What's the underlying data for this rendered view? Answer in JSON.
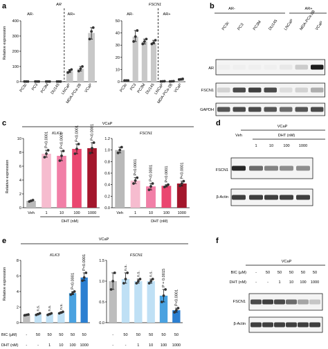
{
  "panels": {
    "a": {
      "label": "a",
      "ylabel": "Relative expression",
      "ar_neg": "AR-",
      "ar_pos": "AR+",
      "charts": [
        {
          "title": "AR",
          "ymax": 400,
          "ticks": [
            0,
            100,
            200,
            300,
            400
          ]
        },
        {
          "title": "FSCN1",
          "ymax": 50,
          "ticks": [
            0,
            10,
            20,
            30,
            40,
            50
          ]
        }
      ]
    },
    "b": {
      "label": "b",
      "ar_neg": "AR-",
      "ar_pos": "AR+",
      "lanes": [
        "PC3c",
        "PC3",
        "PC3M",
        "DU145",
        "LNCaP",
        "MDA-PCa-2B",
        "VCaP"
      ],
      "rows": [
        "AR",
        "FSCN1",
        "GAPDH"
      ]
    },
    "c": {
      "label": "c",
      "header": "VCaP",
      "ylabel": "Relative expression",
      "xlabel": "DHT (nM)",
      "categories": [
        "Veh",
        "1",
        "10",
        "100",
        "1000"
      ],
      "charts": [
        {
          "title": "KLK3",
          "ymax": 10,
          "ticks": [
            0,
            2,
            4,
            6,
            8,
            10
          ]
        },
        {
          "title": "FSCN1",
          "ymax": 1.2,
          "ticks": [
            0.0,
            0.2,
            0.4,
            0.6,
            0.8,
            1.0,
            1.2
          ]
        }
      ]
    },
    "d": {
      "label": "d",
      "header": "VCaP",
      "dht_label": "DHT (nM)",
      "lanes": [
        "Veh",
        "1",
        "10",
        "100",
        "1000"
      ],
      "rows": [
        "FSCN1",
        "β-Actin"
      ]
    },
    "e": {
      "label": "e",
      "header": "VCaP",
      "ylabel": "Relative expression",
      "bic_label": "BIC (µM)",
      "dht_label": "DHT (nM)",
      "bic_values": [
        "-",
        "50",
        "50",
        "50",
        "50",
        "50"
      ],
      "dht_values": [
        "-",
        "-",
        "1",
        "10",
        "100",
        "1000"
      ],
      "charts": [
        {
          "title": "KLK3",
          "ymax": 8,
          "ticks": [
            0,
            2,
            4,
            6,
            8
          ]
        },
        {
          "title": "FSCN1",
          "ymax": 1.5,
          "ticks": [
            0.0,
            0.5,
            1.0,
            1.5
          ]
        }
      ]
    },
    "f": {
      "label": "f",
      "header": "VCaP",
      "bic_label": "BIC (µM)",
      "dht_label": "DHT (nM)",
      "bic_values": [
        "-",
        "50",
        "50",
        "50",
        "50",
        "50"
      ],
      "dht_values": [
        "-",
        "-",
        "1",
        "10",
        "100",
        "1000"
      ],
      "rows": [
        "FSCN1",
        "β-Actin"
      ]
    }
  },
  "chart_data": [
    {
      "type": "bar",
      "panel": "a",
      "title": "AR",
      "ylabel": "Relative expression",
      "categories": [
        "PC3c",
        "PC3",
        "PC3M",
        "DU145",
        "LNCaP",
        "MDA-PCa-2B",
        "VCaP"
      ],
      "values": [
        1,
        1,
        1,
        1,
        70,
        85,
        320
      ],
      "points": [
        [
          1,
          1,
          1
        ],
        [
          1,
          1,
          1
        ],
        [
          1,
          1,
          1
        ],
        [
          1,
          1,
          1
        ],
        [
          60,
          70,
          80
        ],
        [
          70,
          85,
          100
        ],
        [
          280,
          330,
          355
        ]
      ],
      "ylim": [
        0,
        400
      ],
      "colors": [
        "#c8c8c8",
        "#c8c8c8",
        "#c8c8c8",
        "#c8c8c8",
        "#c8c8c8",
        "#c8c8c8",
        "#c8c8c8"
      ]
    },
    {
      "type": "bar",
      "panel": "a",
      "title": "FSCN1",
      "categories": [
        "PC3c",
        "PC3",
        "PC3M",
        "DU145",
        "LNCaP",
        "MDA-PCa-2B",
        "VCaP"
      ],
      "values": [
        1,
        37,
        33,
        32,
        0.3,
        0.3,
        2
      ],
      "points": [
        [
          1,
          1,
          1
        ],
        [
          33,
          37,
          42
        ],
        [
          31,
          33,
          35
        ],
        [
          31,
          32,
          34
        ],
        [
          0.2,
          0.3,
          0.4
        ],
        [
          0.2,
          0.3,
          0.4
        ],
        [
          1.8,
          2,
          2.3
        ]
      ],
      "ylim": [
        0,
        50
      ],
      "colors": [
        "#c8c8c8",
        "#c8c8c8",
        "#c8c8c8",
        "#c8c8c8",
        "#c8c8c8",
        "#c8c8c8",
        "#c8c8c8"
      ]
    },
    {
      "type": "bar",
      "panel": "c",
      "title": "KLK3",
      "ylabel": "Relative expression",
      "xlabel": "DHT (nM)",
      "categories": [
        "Veh",
        "1",
        "10",
        "100",
        "1000"
      ],
      "values": [
        1,
        7.8,
        7.5,
        8.5,
        8.6
      ],
      "points": [
        [
          0.9,
          1,
          1.1
        ],
        [
          7.3,
          7.8,
          8.3
        ],
        [
          6.8,
          7.5,
          8.2
        ],
        [
          7.8,
          8.5,
          9.2
        ],
        [
          7.9,
          8.6,
          9.4
        ]
      ],
      "annotations": [
        "",
        "P<0.0001",
        "P<0.0001",
        "P<0.0001",
        "P<0.0001"
      ],
      "ylim": [
        0,
        10
      ],
      "colors": [
        "#b9b9b9",
        "#f6bccf",
        "#f17fa7",
        "#ea4770",
        "#a3172c"
      ]
    },
    {
      "type": "bar",
      "panel": "c",
      "title": "FSCN1",
      "xlabel": "DHT (nM)",
      "categories": [
        "Veh",
        "1",
        "10",
        "100",
        "1000"
      ],
      "values": [
        1.0,
        0.47,
        0.37,
        0.38,
        0.42
      ],
      "points": [
        [
          0.95,
          1.0,
          1.05
        ],
        [
          0.42,
          0.47,
          0.52
        ],
        [
          0.31,
          0.37,
          0.42
        ],
        [
          0.36,
          0.38,
          0.4
        ],
        [
          0.38,
          0.42,
          0.46
        ]
      ],
      "annotations": [
        "",
        "P<0.0001",
        "P<0.0001",
        "P<0.0001",
        "P<0.0001"
      ],
      "ylim": [
        0,
        1.2
      ],
      "colors": [
        "#b9b9b9",
        "#f6bccf",
        "#f17fa7",
        "#ea4770",
        "#a3172c"
      ]
    },
    {
      "type": "bar",
      "panel": "e",
      "title": "KLK3",
      "ylabel": "Relative expression",
      "categories": [
        "BIC - / DHT -",
        "BIC 50 / DHT -",
        "BIC 50 / DHT 1",
        "BIC 50 / DHT 10",
        "BIC 50 / DHT 100",
        "BIC 50 / DHT 1000"
      ],
      "values": [
        1.0,
        1.1,
        1.1,
        1.3,
        3.8,
        5.8
      ],
      "points": [
        [
          0.95,
          1.0,
          1.05
        ],
        [
          1.0,
          1.1,
          1.2
        ],
        [
          1.0,
          1.1,
          1.2
        ],
        [
          1.2,
          1.3,
          1.4
        ],
        [
          3.6,
          3.8,
          4.0
        ],
        [
          5.4,
          5.8,
          6.4
        ]
      ],
      "annotations": [
        "",
        "n.s.",
        "n.s.",
        "n.s.",
        "P<0.0001",
        "P<0.0001"
      ],
      "ylim": [
        0,
        8
      ],
      "colors": [
        "#bdbdbd",
        "#bfe0f5",
        "#bfe0f5",
        "#bfe0f5",
        "#4aa2e0",
        "#2b7fd1"
      ]
    },
    {
      "type": "bar",
      "panel": "e",
      "title": "FSCN1",
      "categories": [
        "BIC - / DHT -",
        "BIC 50 / DHT -",
        "BIC 50 / DHT 1",
        "BIC 50 / DHT 10",
        "BIC 50 / DHT 100",
        "BIC 50 / DHT 1000"
      ],
      "values": [
        1.0,
        1.05,
        1.0,
        1.0,
        0.65,
        0.3
      ],
      "points": [
        [
          0.8,
          1.0,
          1.2
        ],
        [
          0.95,
          1.05,
          1.2
        ],
        [
          0.95,
          1.0,
          1.05
        ],
        [
          0.95,
          1.0,
          1.05
        ],
        [
          0.5,
          0.65,
          0.8
        ],
        [
          0.25,
          0.3,
          0.35
        ]
      ],
      "annotations": [
        "",
        "n.s.",
        "n.s.",
        "n.s.",
        "P = 0.0015",
        "P<0.0001"
      ],
      "ylim": [
        0,
        1.5
      ],
      "colors": [
        "#bdbdbd",
        "#bfe0f5",
        "#bfe0f5",
        "#bfe0f5",
        "#4aa2e0",
        "#2b7fd1"
      ]
    }
  ]
}
